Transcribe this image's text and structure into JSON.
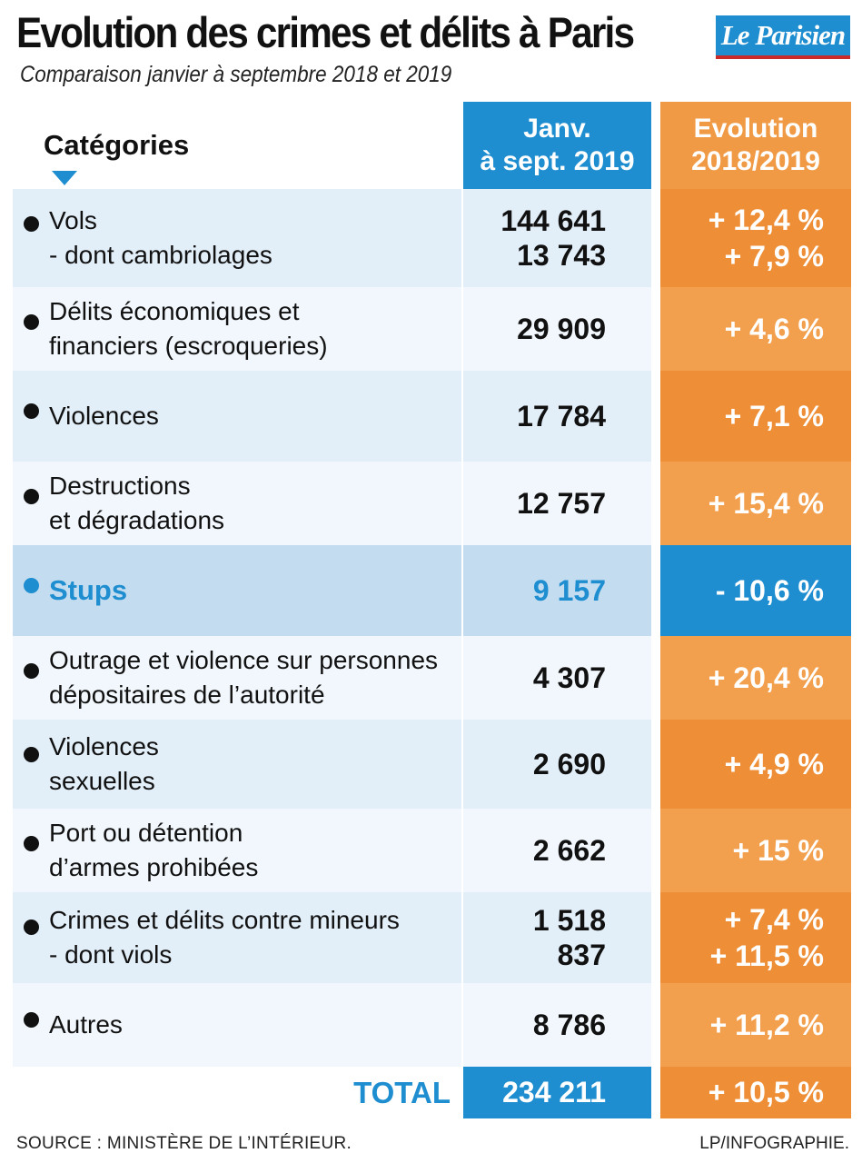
{
  "header": {
    "title": "Evolution des crimes et délits à Paris",
    "subtitle": "Comparaison janvier à septembre 2018 et 2019",
    "logo_text": "Le Parisien"
  },
  "columns": {
    "categories": "Catégories",
    "period_line1": "Janv.",
    "period_line2": "à sept. 2019",
    "evolution_line1": "Evolution",
    "evolution_line2": "2018/2019"
  },
  "chart_data": {
    "type": "table",
    "title": "Evolution des crimes et délits à Paris",
    "subtitle": "Comparaison janvier à septembre 2018 et 2019",
    "columns": [
      "Catégories",
      "Janv. à sept. 2019",
      "Evolution 2018/2019"
    ],
    "rows": [
      {
        "label_lines": [
          "Vols",
          "- dont cambriolages"
        ],
        "values": [
          "144 641",
          "13 743"
        ],
        "evolutions": [
          "+ 12,4 %",
          "+ 7,9 %"
        ]
      },
      {
        "label_lines": [
          "Délits économiques et",
          "financiers (escroqueries)"
        ],
        "values": [
          "29 909"
        ],
        "evolutions": [
          "+ 4,6 %"
        ]
      },
      {
        "label_lines": [
          "Violences"
        ],
        "values": [
          "17 784"
        ],
        "evolutions": [
          "+ 7,1 %"
        ]
      },
      {
        "label_lines": [
          "Destructions",
          "et dégradations"
        ],
        "values": [
          "12 757"
        ],
        "evolutions": [
          "+ 15,4 %"
        ]
      },
      {
        "label_lines": [
          "Stups"
        ],
        "values": [
          "9 157"
        ],
        "evolutions": [
          "- 10,6 %"
        ],
        "highlight": true
      },
      {
        "label_lines": [
          "Outrage et violence sur personnes",
          "dépositaires de l’autorité"
        ],
        "values": [
          "4 307"
        ],
        "evolutions": [
          "+ 20,4 %"
        ]
      },
      {
        "label_lines": [
          "Violences",
          "sexuelles"
        ],
        "values": [
          "2 690"
        ],
        "evolutions": [
          "+ 4,9 %"
        ]
      },
      {
        "label_lines": [
          "Port ou détention",
          "d’armes prohibées"
        ],
        "values": [
          "2 662"
        ],
        "evolutions": [
          "+ 15 %"
        ]
      },
      {
        "label_lines": [
          "Crimes et délits contre mineurs",
          "- dont viols"
        ],
        "values": [
          "1 518",
          "837"
        ],
        "evolutions": [
          "+ 7,4 %",
          "+ 11,5 %"
        ]
      },
      {
        "label_lines": [
          "Autres"
        ],
        "values": [
          "8 786"
        ],
        "evolutions": [
          "+ 11,2 %"
        ]
      }
    ],
    "total": {
      "label": "TOTAL",
      "value": "234 211",
      "evolution": "+ 10,5 %"
    }
  },
  "footer": {
    "source": "SOURCE : MINISTÈRE DE L’INTÉRIEUR.",
    "credit": "LP/INFOGRAPHIE."
  },
  "colors": {
    "blue": "#1e8ed0",
    "orange": "#ee8f38",
    "orange_light": "#f3a04e",
    "row_light_a": "#e2eef8",
    "row_light_b": "#f1f7fc",
    "highlight_row": "#c3dcef"
  }
}
